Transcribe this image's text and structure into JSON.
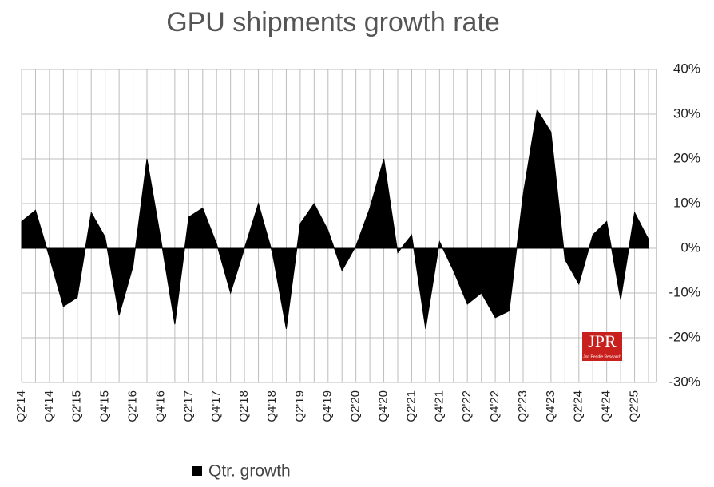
{
  "chart_data": {
    "type": "area",
    "title": "GPU shipments growth rate",
    "categories": [
      "Q2'14",
      null,
      "Q4'14",
      null,
      "Q2'15",
      null,
      "Q4'15",
      null,
      "Q2'16",
      null,
      "Q4'16",
      null,
      "Q2'17",
      null,
      "Q4'17",
      null,
      "Q2'18",
      null,
      "Q4'18",
      null,
      "Q2'19",
      null,
      "Q4'19",
      null,
      "Q2'20",
      null,
      "Q4'20",
      null,
      "Q2'21",
      null,
      "Q4'21",
      null,
      "Q2'22",
      null,
      "Q4'22",
      null,
      "Q2'23",
      null,
      "Q4'23",
      null,
      "Q2'24",
      null,
      "Q4'24",
      null,
      "Q2'25",
      null
    ],
    "series": [
      {
        "name": "Qtr. growth",
        "color": "#000000",
        "values": [
          6,
          8.5,
          -2,
          -13,
          -11,
          8,
          2.5,
          -15,
          -4,
          20,
          2,
          -17,
          7,
          9,
          1,
          -10,
          0,
          10,
          -1,
          -18,
          5.5,
          10,
          4,
          -5,
          0.5,
          9,
          20,
          -1,
          3,
          -18,
          1.5,
          -5,
          -12.5,
          -10,
          -15.5,
          -14,
          12,
          31,
          26,
          -2.5,
          -8,
          3,
          6,
          -11.5,
          8,
          2
        ]
      }
    ],
    "ylim": [
      -30,
      40
    ],
    "yticks": [
      {
        "value": -30,
        "label": "-30%"
      },
      {
        "value": -20,
        "label": "-20%"
      },
      {
        "value": -10,
        "label": "-10%"
      },
      {
        "value": 0,
        "label": "0%"
      },
      {
        "value": 10,
        "label": "10%"
      },
      {
        "value": 20,
        "label": "20%"
      },
      {
        "value": 30,
        "label": "30%"
      },
      {
        "value": 40,
        "label": "40%"
      }
    ],
    "grid": true,
    "legend": "bottom-left",
    "watermark": "JPR",
    "watermark_sub": "Jon Peddie Research"
  }
}
